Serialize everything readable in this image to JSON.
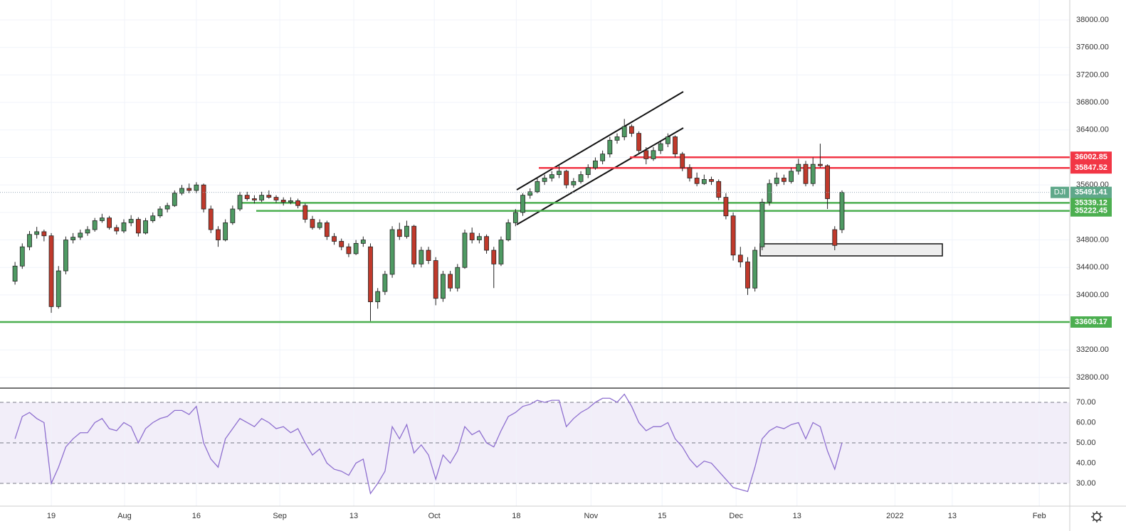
{
  "chart_data": [
    {
      "type": "candlestick",
      "symbol": "DJI",
      "x": [
        0,
        1,
        2,
        3,
        4,
        5,
        6,
        7,
        8,
        9,
        10,
        11,
        12,
        13,
        14,
        15,
        16,
        17,
        18,
        19,
        20,
        21,
        22,
        23,
        24,
        25,
        26,
        27,
        28,
        29,
        30,
        31,
        32,
        33,
        34,
        35,
        36,
        37,
        38,
        39,
        40,
        41,
        42,
        43,
        44,
        45,
        46,
        47,
        48,
        49,
        50,
        51,
        52,
        53,
        54,
        55,
        56,
        57,
        58,
        59,
        60,
        61,
        62,
        63,
        64,
        65,
        66,
        67,
        68,
        69,
        70,
        71,
        72,
        73,
        74,
        75,
        76,
        77,
        78,
        79,
        80,
        81,
        82,
        83,
        84,
        85,
        86,
        87,
        88,
        89,
        90,
        91,
        92,
        93,
        94,
        95,
        96,
        97,
        98,
        99,
        100,
        101,
        102,
        103,
        104,
        105,
        106,
        107,
        108,
        109,
        110,
        111,
        112,
        113,
        114
      ],
      "open": [
        34200,
        34420,
        34700,
        34880,
        34920,
        34860,
        33830,
        34350,
        34800,
        34840,
        34900,
        34950,
        35080,
        35120,
        34980,
        34930,
        35050,
        35100,
        34900,
        35080,
        35150,
        35250,
        35300,
        35480,
        35550,
        35520,
        35600,
        35250,
        34950,
        34800,
        35050,
        35250,
        35450,
        35400,
        35380,
        35450,
        35420,
        35380,
        35350,
        35370,
        35300,
        35100,
        34980,
        35050,
        34850,
        34780,
        34700,
        34600,
        34750,
        34700,
        33900,
        34050,
        34300,
        34950,
        34850,
        35000,
        34450,
        34650,
        34500,
        33950,
        34300,
        34100,
        34400,
        34900,
        34800,
        34850,
        34650,
        34450,
        34800,
        35050,
        35200,
        35450,
        35500,
        35650,
        35700,
        35750,
        35800,
        35600,
        35650,
        35750,
        35850,
        35950,
        36050,
        36250,
        36300,
        36450,
        36350,
        36100,
        35980,
        36100,
        36200,
        36300,
        36050,
        35850,
        35700,
        35620,
        35680,
        35650,
        35420,
        35150,
        34580,
        34480,
        34100,
        34700,
        35350,
        35620,
        35700,
        35650,
        35800,
        35900,
        35620,
        35900,
        35880,
        34950,
        34950
      ],
      "high": [
        34480,
        34750,
        34930,
        34990,
        34950,
        34900,
        34420,
        34850,
        34900,
        34950,
        35000,
        35120,
        35180,
        35150,
        35020,
        35100,
        35160,
        35130,
        35120,
        35200,
        35290,
        35340,
        35520,
        35600,
        35620,
        35640,
        35620,
        35300,
        35000,
        35100,
        35300,
        35500,
        35500,
        35450,
        35500,
        35520,
        35450,
        35420,
        35420,
        35400,
        35330,
        35150,
        35100,
        35080,
        34900,
        34820,
        34750,
        34800,
        34850,
        34750,
        34100,
        34350,
        35000,
        35050,
        35080,
        35020,
        34700,
        34700,
        34550,
        34350,
        34350,
        34450,
        34950,
        34980,
        34900,
        34880,
        34700,
        34850,
        35100,
        35250,
        35480,
        35550,
        35700,
        35750,
        35800,
        35880,
        35820,
        35700,
        35800,
        35900,
        36000,
        36100,
        36300,
        36350,
        36560,
        36480,
        36380,
        36150,
        36150,
        36250,
        36350,
        36320,
        36080,
        35900,
        35780,
        35750,
        35720,
        35680,
        35480,
        35200,
        34700,
        34550,
        34700,
        35400,
        35680,
        35780,
        35750,
        35850,
        35980,
        35950,
        36000,
        36200,
        35900,
        35000,
        35520
      ],
      "low": [
        34150,
        34380,
        34650,
        34820,
        34780,
        33740,
        33800,
        34300,
        34750,
        34800,
        34860,
        34920,
        35050,
        34950,
        34880,
        34900,
        35000,
        34850,
        34880,
        35050,
        35120,
        35200,
        35280,
        35450,
        35480,
        35480,
        35200,
        34900,
        34700,
        34780,
        35020,
        35220,
        35370,
        35330,
        35350,
        35400,
        35340,
        35300,
        35320,
        35260,
        35050,
        34950,
        34950,
        34800,
        34730,
        34650,
        34550,
        34580,
        34700,
        33620,
        33800,
        34000,
        34250,
        34800,
        34820,
        34400,
        34400,
        34450,
        33850,
        33900,
        34050,
        34050,
        34380,
        34750,
        34750,
        34600,
        34100,
        34420,
        34780,
        35000,
        35150,
        35400,
        35480,
        35600,
        35650,
        35700,
        35550,
        35560,
        35620,
        35700,
        35820,
        35900,
        36000,
        36200,
        36250,
        36300,
        36050,
        35900,
        35950,
        36050,
        36150,
        36000,
        35800,
        35650,
        35580,
        35600,
        35600,
        35380,
        35100,
        34500,
        34400,
        34000,
        34050,
        34650,
        35300,
        35580,
        35600,
        35620,
        35750,
        35580,
        35580,
        35850,
        35250,
        34650,
        34900
      ],
      "close": [
        34420,
        34700,
        34880,
        34920,
        34860,
        33830,
        34350,
        34800,
        34840,
        34900,
        34950,
        35080,
        35120,
        34980,
        34930,
        35050,
        35100,
        34900,
        35080,
        35150,
        35250,
        35300,
        35480,
        35550,
        35520,
        35600,
        35250,
        34950,
        34800,
        35050,
        35250,
        35450,
        35400,
        35380,
        35450,
        35420,
        35380,
        35350,
        35370,
        35300,
        35100,
        34980,
        35050,
        34850,
        34780,
        34700,
        34600,
        34750,
        34800,
        33900,
        34050,
        34300,
        34950,
        34850,
        35000,
        34450,
        34650,
        34500,
        33950,
        34300,
        34100,
        34400,
        34900,
        34800,
        34850,
        34650,
        34450,
        34800,
        35050,
        35200,
        35450,
        35500,
        35650,
        35700,
        35750,
        35800,
        35600,
        35650,
        35750,
        35850,
        35950,
        36050,
        36250,
        36300,
        36450,
        36350,
        36100,
        35980,
        36100,
        36200,
        36300,
        36050,
        35850,
        35700,
        35620,
        35680,
        35650,
        35420,
        35150,
        34580,
        34480,
        34100,
        34650,
        35350,
        35620,
        35700,
        35650,
        35800,
        35900,
        35620,
        35900,
        35880,
        35400,
        34720,
        35491.41
      ],
      "up_color": "#4f9a63",
      "down_color": "#c0392b",
      "levels": [
        {
          "value": 36002.85,
          "color": "#f23645"
        },
        {
          "value": 35847.52,
          "color": "#f23645"
        },
        {
          "value": 35339.12,
          "color": "#4caf50"
        },
        {
          "value": 35222.45,
          "color": "#4caf50"
        },
        {
          "value": 33606.17,
          "color": "#4caf50"
        }
      ],
      "xlim": [
        -2.07,
        145.4
      ],
      "ylim": [
        32655,
        38290
      ],
      "yticks": [
        {
          "value": 32800,
          "label": "32800.00"
        },
        {
          "value": 33200,
          "label": "33200.00"
        },
        {
          "value": 33600,
          "label": "33600.00"
        },
        {
          "value": 34000,
          "label": "34000.00"
        },
        {
          "value": 34400,
          "label": "34400.00"
        },
        {
          "value": 34800,
          "label": "34800.00"
        },
        {
          "value": 35200,
          "label": "35200.00"
        },
        {
          "value": 35600,
          "label": "35600.00"
        },
        {
          "value": 36000,
          "label": "36000.00"
        },
        {
          "value": 36400,
          "label": "36400.00"
        },
        {
          "value": 36800,
          "label": "36800.00"
        },
        {
          "value": 37200,
          "label": "37200.00"
        },
        {
          "value": 37600,
          "label": "37600.00"
        },
        {
          "value": 38000,
          "label": "38000.00"
        }
      ],
      "grid": true
    },
    {
      "type": "line",
      "color": "#8e6fcf",
      "values": [
        52,
        63,
        65,
        62,
        60,
        30,
        38,
        48,
        52,
        55,
        55,
        60,
        62,
        57,
        56,
        60,
        58,
        50,
        57,
        60,
        62,
        63,
        66,
        66,
        64,
        68,
        50,
        42,
        38,
        52,
        57,
        62,
        60,
        58,
        62,
        60,
        57,
        58,
        55,
        57,
        50,
        44,
        47,
        40,
        37,
        36,
        34,
        40,
        42,
        25,
        30,
        36,
        58,
        52,
        59,
        45,
        49,
        44,
        32,
        44,
        40,
        46,
        58,
        54,
        56,
        50,
        48,
        56,
        63,
        65,
        68,
        69,
        71,
        70,
        71,
        71,
        58,
        62,
        65,
        67,
        70,
        72,
        72,
        70,
        74,
        68,
        60,
        56,
        58,
        58,
        60,
        52,
        48,
        42,
        38,
        41,
        40,
        36,
        32,
        28,
        27,
        26,
        38,
        52,
        56,
        58,
        57,
        59,
        60,
        52,
        60,
        58,
        46,
        37,
        50
      ],
      "levels": [
        30,
        50,
        70
      ],
      "xlim": [
        -2.07,
        145.4
      ],
      "ylim": [
        18.8,
        76.3
      ],
      "yticks": [
        {
          "value": 30,
          "label": "30.00"
        },
        {
          "value": 40,
          "label": "40.00"
        },
        {
          "value": 50,
          "label": "50.00"
        },
        {
          "value": 60,
          "label": "60.00"
        },
        {
          "value": 70,
          "label": "70.00"
        }
      ],
      "xticks": [
        {
          "value": 5,
          "label": "19"
        },
        {
          "value": 15.1,
          "label": "Aug"
        },
        {
          "value": 25,
          "label": "16"
        },
        {
          "value": 36.5,
          "label": "Sep"
        },
        {
          "value": 46.7,
          "label": "13"
        },
        {
          "value": 57.8,
          "label": "Oct"
        },
        {
          "value": 69.1,
          "label": "18"
        },
        {
          "value": 79.4,
          "label": "Nov"
        },
        {
          "value": 89.2,
          "label": "15"
        },
        {
          "value": 99.4,
          "label": "Dec"
        },
        {
          "value": 107.8,
          "label": "13"
        },
        {
          "value": 121.3,
          "label": "2022"
        },
        {
          "value": 129.2,
          "label": "13"
        },
        {
          "value": 141.2,
          "label": "Feb"
        }
      ],
      "grid": true
    }
  ]
}
